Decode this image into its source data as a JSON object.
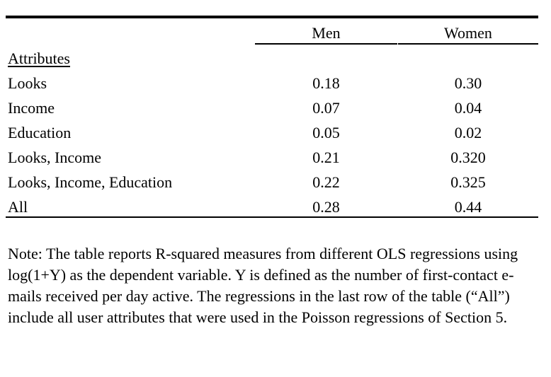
{
  "table": {
    "columns": [
      "Men",
      "Women"
    ],
    "section_label": "Attributes",
    "rows": [
      {
        "attribute": "Looks",
        "men": "0.18",
        "women": "0.30"
      },
      {
        "attribute": "Income",
        "men": "0.07",
        "women": "0.04"
      },
      {
        "attribute": "Education",
        "men": "0.05",
        "women": "0.02"
      },
      {
        "attribute": "Looks, Income",
        "men": "0.21",
        "women": "0.320"
      },
      {
        "attribute": "Looks, Income, Education",
        "men": "0.22",
        "women": "0.325"
      },
      {
        "attribute": "All",
        "men": "0.28",
        "women": "0.44"
      }
    ]
  },
  "note": "Note:  The table reports R-squared measures from different OLS regressions using log(1+Y) as the dependent variable. Y is defined as the number of first-contact e-mails received per day active. The regressions in the last row of the table (“All”) include all user attributes that were used in the Poisson regressions of Section 5."
}
